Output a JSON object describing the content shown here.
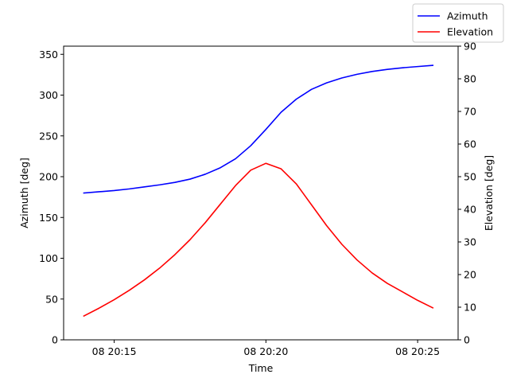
{
  "chart_data": {
    "type": "line",
    "xlabel": "Time",
    "ylabel_left": "Azimuth [deg]",
    "ylabel_right": "Elevation [deg]",
    "x_ticks": [
      "08 20:15",
      "08 20:20",
      "08 20:25"
    ],
    "x_tick_times": [
      "2000-01-08T20:15:00",
      "2000-01-08T20:20:00",
      "2000-01-08T20:25:00"
    ],
    "xlim": [
      "2000-01-08T20:13:20",
      "2000-01-08T20:26:20"
    ],
    "ylim_left": [
      0,
      360
    ],
    "ylim_right": [
      0,
      90
    ],
    "y_ticks_left": [
      0,
      50,
      100,
      150,
      200,
      250,
      300,
      350
    ],
    "y_ticks_right": [
      0,
      10,
      20,
      30,
      40,
      50,
      60,
      70,
      80,
      90
    ],
    "grid": false,
    "legend_position": "top-right",
    "series": [
      {
        "name": "Azimuth",
        "axis": "left",
        "color": "#0000ff",
        "x": [
          "20:14:00",
          "20:14:30",
          "20:15:00",
          "20:15:30",
          "20:16:00",
          "20:16:30",
          "20:17:00",
          "20:17:30",
          "20:18:00",
          "20:18:30",
          "20:19:00",
          "20:19:30",
          "20:20:00",
          "20:20:30",
          "20:21:00",
          "20:21:30",
          "20:22:00",
          "20:22:30",
          "20:23:00",
          "20:23:30",
          "20:24:00",
          "20:24:30",
          "20:25:00",
          "20:25:30"
        ],
        "values": [
          180,
          181.5,
          183,
          185,
          187.5,
          190,
          193,
          197,
          203,
          211,
          222,
          238,
          258,
          279,
          295,
          307,
          315,
          321,
          325.5,
          329,
          331.5,
          333.5,
          335,
          336.5
        ]
      },
      {
        "name": "Elevation",
        "axis": "right",
        "color": "#ff0000",
        "x": [
          "20:14:00",
          "20:14:30",
          "20:15:00",
          "20:15:30",
          "20:16:00",
          "20:16:30",
          "20:17:00",
          "20:17:30",
          "20:18:00",
          "20:18:30",
          "20:19:00",
          "20:19:30",
          "20:20:00",
          "20:20:30",
          "20:21:00",
          "20:21:30",
          "20:22:00",
          "20:22:30",
          "20:23:00",
          "20:23:30",
          "20:24:00",
          "20:24:30",
          "20:25:00",
          "20:25:30"
        ],
        "values": [
          7.3,
          9.7,
          12.3,
          15.2,
          18.4,
          22.0,
          26.1,
          30.7,
          35.9,
          41.6,
          47.3,
          52.0,
          54.1,
          52.4,
          47.8,
          41.4,
          35.0,
          29.3,
          24.5,
          20.5,
          17.3,
          14.7,
          12.1,
          9.8
        ]
      }
    ]
  }
}
